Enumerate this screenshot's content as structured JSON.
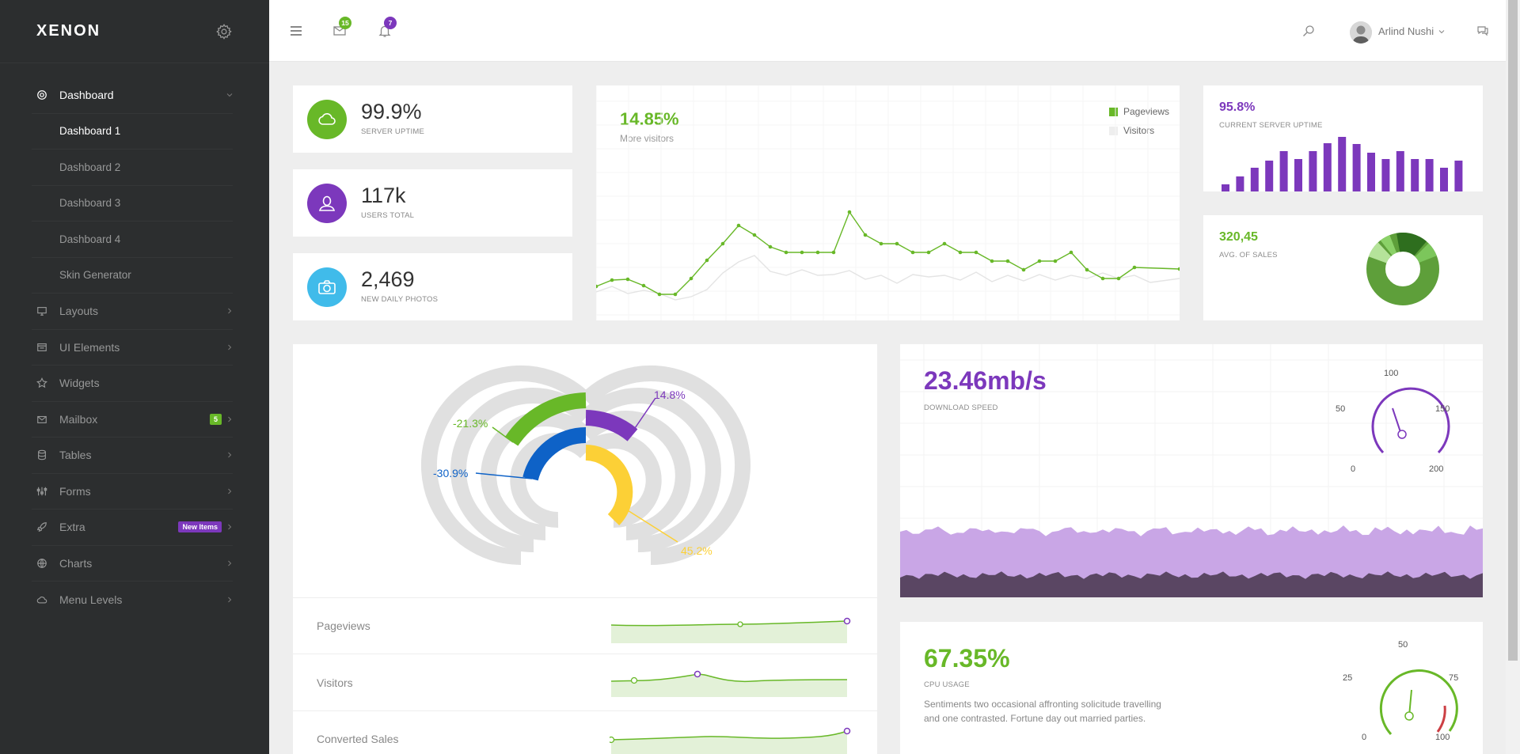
{
  "brand": {
    "name": "XENON"
  },
  "sidebar": {
    "items": [
      {
        "label": "Dashboard",
        "icon": "gear-icon",
        "active": true
      },
      {
        "label": "Layouts",
        "icon": "monitor-icon"
      },
      {
        "label": "UI Elements",
        "icon": "ui-elements-icon"
      },
      {
        "label": "Widgets",
        "icon": "star-icon"
      },
      {
        "label": "Mailbox",
        "icon": "envelope-icon",
        "badge": "5"
      },
      {
        "label": "Tables",
        "icon": "database-icon"
      },
      {
        "label": "Forms",
        "icon": "sliders-icon"
      },
      {
        "label": "Extra",
        "icon": "rocket-icon",
        "badge": "New Items"
      },
      {
        "label": "Charts",
        "icon": "globe-icon"
      },
      {
        "label": "Menu Levels",
        "icon": "cloud-icon"
      }
    ],
    "dashboard_sub": [
      "Dashboard 1",
      "Dashboard 2",
      "Dashboard 3",
      "Dashboard 4",
      "Skin Generator"
    ]
  },
  "topbar": {
    "messages_count": "15",
    "notifications_count": "7",
    "user_name": "Arlind Nushi"
  },
  "stats": [
    {
      "value": "99.9%",
      "label": "SERVER UPTIME",
      "icon": "cloud-icon",
      "color": "#68b828"
    },
    {
      "value": "117k",
      "label": "USERS TOTAL",
      "icon": "user-icon",
      "color": "#7c38bc"
    },
    {
      "value": "2,469",
      "label": "NEW DAILY PHOTOS",
      "icon": "camera-icon",
      "color": "#40bbea"
    }
  ],
  "visitors_card": {
    "pct": "14.85%",
    "caption": "More visitors",
    "legend": [
      "Pageviews",
      "Visitors"
    ]
  },
  "uptime_card": {
    "pct": "95.8%",
    "caption": "CURRENT SERVER UPTIME"
  },
  "sales_card": {
    "value": "320,45",
    "caption": "AVG. OF SALES"
  },
  "radial_card": {
    "labels": [
      "14.8%",
      "-21.3%",
      "-30.9%",
      "45.2%"
    ],
    "rows": [
      "Pageviews",
      "Visitors",
      "Converted Sales"
    ]
  },
  "download_card": {
    "value": "23.46mb/s",
    "caption": "DOWNLOAD SPEED",
    "gauge_ticks": [
      "100",
      "50",
      "150",
      "0",
      "200"
    ]
  },
  "cpu_card": {
    "value": "67.35%",
    "caption": "CPU USAGE",
    "description": "Sentiments two occasional affronting solicitude travelling and one contrasted. Fortune day out married parties.",
    "gauge_ticks": [
      "50",
      "25",
      "75",
      "0",
      "100"
    ]
  },
  "colors": {
    "green": "#68b828",
    "purple": "#7c38bc",
    "blue": "#0e62c7",
    "yellow": "#fcd036",
    "cyan": "#40bbea"
  }
}
